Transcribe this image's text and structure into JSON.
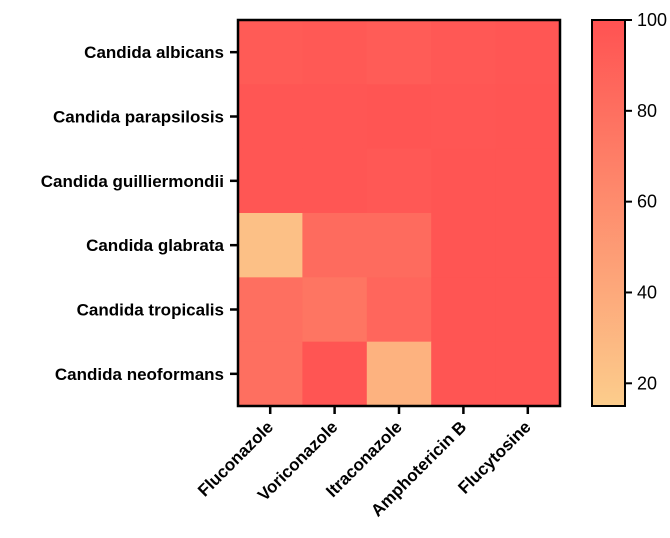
{
  "chart_data": {
    "type": "heatmap",
    "title": "",
    "xlabel": "",
    "ylabel": "",
    "rows": [
      "Candida albicans",
      "Candida parapsilosis",
      "Candida guilliermondii",
      "Candida glabrata",
      "Candida tropicalis",
      "Candida neoformans"
    ],
    "columns": [
      "Fluconazole",
      "Voriconazole",
      "Itraconazole",
      "Amphotericin B",
      "Flucytosine"
    ],
    "values": [
      [
        94,
        95,
        93,
        96,
        97
      ],
      [
        97,
        97,
        98,
        97,
        98
      ],
      [
        97,
        97,
        96,
        98,
        98
      ],
      [
        24,
        83,
        83,
        98,
        98
      ],
      [
        80,
        76,
        86,
        98,
        98
      ],
      [
        80,
        98,
        34,
        98,
        98
      ]
    ],
    "colorbar": {
      "range": [
        15,
        100
      ],
      "ticks": [
        20,
        40,
        60,
        80,
        100
      ],
      "tick_labels": [
        "20",
        "40",
        "60",
        "80",
        "100"
      ],
      "low_color": "#FCCD8C",
      "high_color": "#FF5252"
    },
    "grid": false,
    "legend": "colorbar-right"
  }
}
